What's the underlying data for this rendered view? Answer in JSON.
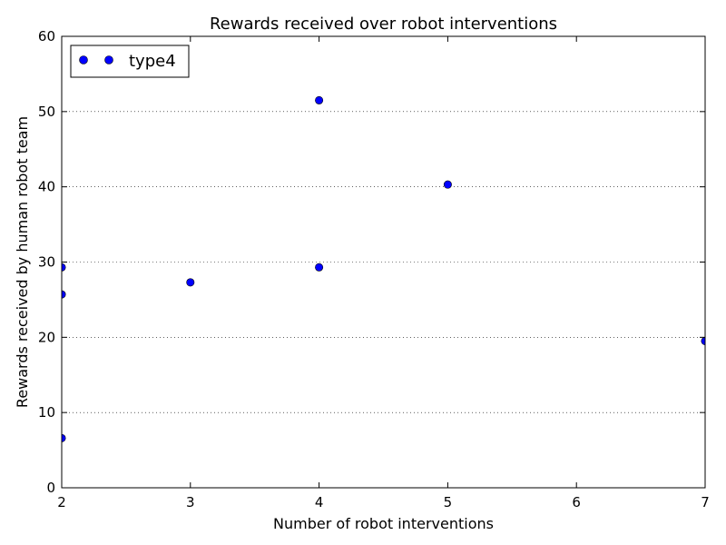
{
  "chart_data": {
    "type": "scatter",
    "title": "Rewards received over robot interventions",
    "xlabel": "Number of robot interventions",
    "ylabel": "Rewards received by human robot team",
    "xlim": [
      2,
      7
    ],
    "ylim": [
      0,
      60
    ],
    "xticks": [
      2,
      3,
      4,
      5,
      6,
      7
    ],
    "yticks": [
      0,
      10,
      20,
      30,
      40,
      50,
      60
    ],
    "grid": "horizontal dotted",
    "legend_position": "top-left",
    "series": [
      {
        "name": "type4",
        "color": "#0000ff",
        "marker": "circle",
        "points": [
          {
            "x": 2,
            "y": 29.3
          },
          {
            "x": 2,
            "y": 25.7
          },
          {
            "x": 2,
            "y": 6.6
          },
          {
            "x": 3,
            "y": 27.3
          },
          {
            "x": 4,
            "y": 51.5
          },
          {
            "x": 4,
            "y": 29.3
          },
          {
            "x": 5,
            "y": 40.3
          },
          {
            "x": 7,
            "y": 19.5
          }
        ]
      }
    ]
  }
}
